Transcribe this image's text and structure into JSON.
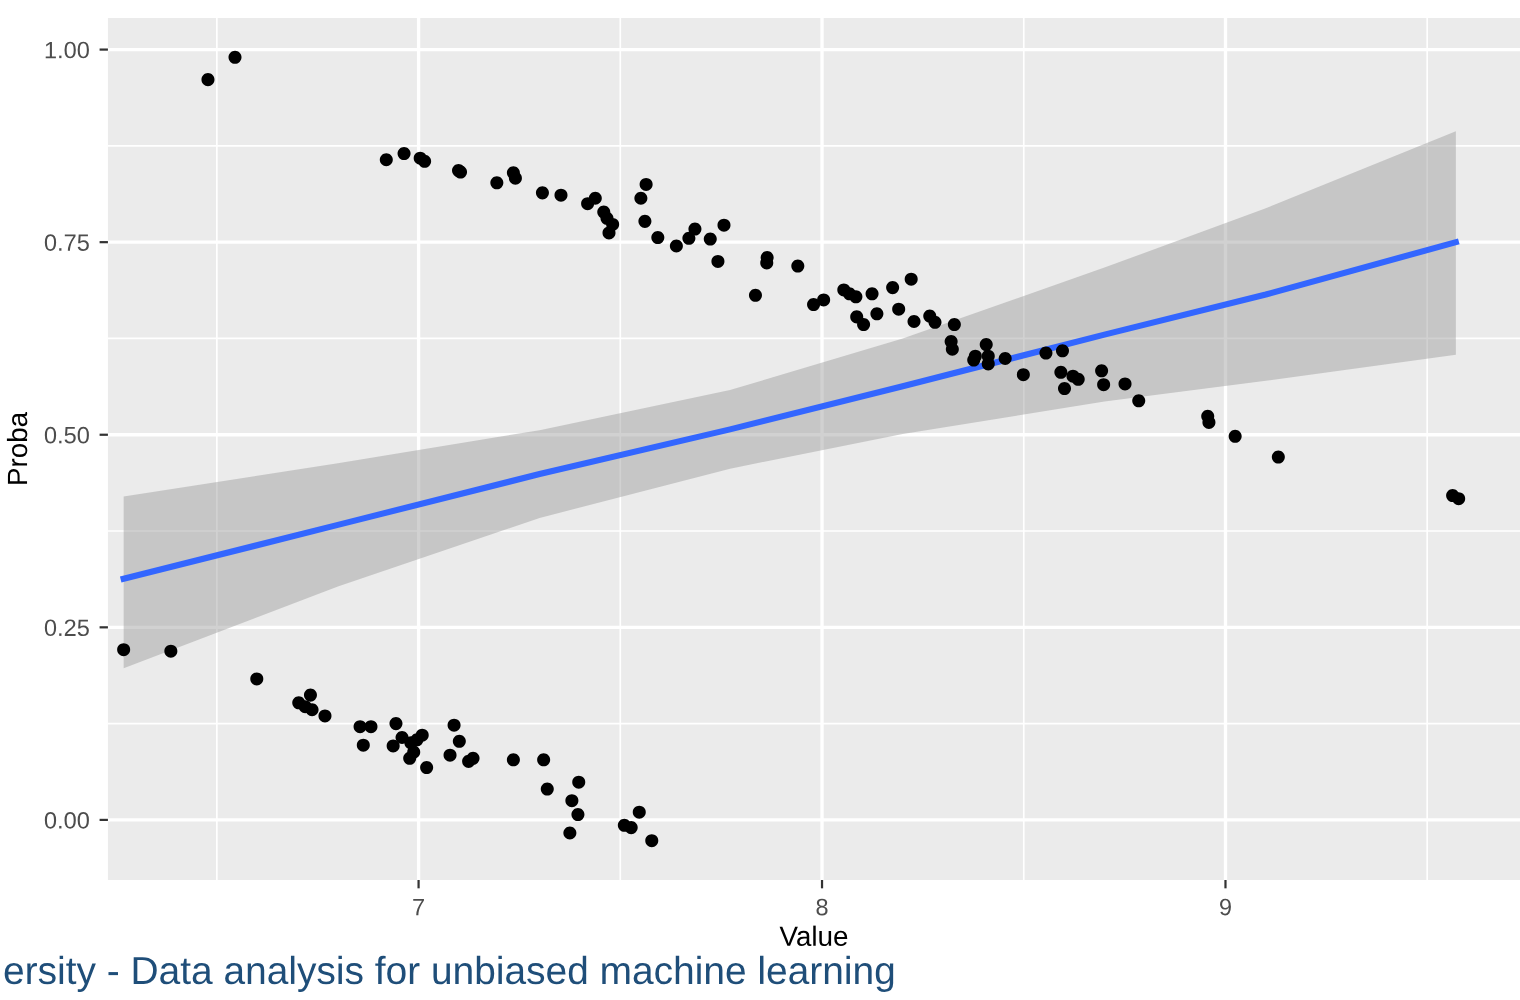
{
  "chart_data": {
    "type": "scatter",
    "xlabel": "Value",
    "ylabel": "Proba",
    "xlim": [
      6.23,
      9.73
    ],
    "ylim": [
      -0.078,
      1.041
    ],
    "xticks": [
      7,
      8,
      9
    ],
    "yticks": [
      {
        "value": 0,
        "label": "0.00"
      },
      {
        "value": 0.25,
        "label": "0.25"
      },
      {
        "value": 0.5,
        "label": "0.50"
      },
      {
        "value": 0.75,
        "label": "0.75"
      },
      {
        "value": 1,
        "label": "1.00"
      }
    ],
    "grid": true,
    "annotations": [
      "ersity - Data analysis for unbiased machine learning"
    ],
    "series": [
      {
        "marker": "circle",
        "color": "#000000",
        "x": [
          6.478,
          6.545,
          6.92,
          6.964,
          7.004,
          7.015,
          7.099,
          7.104,
          7.194,
          7.235,
          7.24,
          7.307,
          7.353,
          7.419,
          7.438,
          7.459,
          7.467,
          7.472,
          7.481,
          7.551,
          7.564,
          7.561,
          7.593,
          7.639,
          7.67,
          7.685,
          7.723,
          7.742,
          7.757,
          7.835,
          7.864,
          7.863,
          7.94,
          7.979,
          8.004,
          8.054,
          8.068,
          8.084,
          8.086,
          8.103,
          8.124,
          8.136,
          8.175,
          8.19,
          8.221,
          8.228,
          8.267,
          8.28,
          8.328,
          8.32,
          8.323,
          8.376,
          8.38,
          8.407,
          8.412,
          8.412,
          8.454,
          8.499,
          8.555,
          8.596,
          8.592,
          8.601,
          8.622,
          8.635,
          8.693,
          8.698,
          8.751,
          8.785,
          8.956,
          8.959,
          9.024,
          9.131,
          9.563,
          9.578,
          6.269,
          6.386,
          6.599,
          6.703,
          6.719,
          6.732,
          6.736,
          6.768,
          6.855,
          6.882,
          6.863,
          6.944,
          6.937,
          6.959,
          6.981,
          6.978,
          6.988,
          6.996,
          7.009,
          7.02,
          7.078,
          7.088,
          7.101,
          7.124,
          7.135,
          7.235,
          7.31,
          7.319,
          7.38,
          7.397,
          7.395,
          7.375,
          7.51,
          7.527,
          7.547,
          7.578
        ],
        "values": [
          0.961,
          0.99,
          0.857,
          0.865,
          0.859,
          0.855,
          0.843,
          0.841,
          0.827,
          0.84,
          0.833,
          0.814,
          0.811,
          0.8,
          0.807,
          0.789,
          0.781,
          0.762,
          0.773,
          0.807,
          0.825,
          0.777,
          0.756,
          0.745,
          0.755,
          0.767,
          0.754,
          0.725,
          0.772,
          0.681,
          0.73,
          0.723,
          0.719,
          0.669,
          0.675,
          0.688,
          0.683,
          0.679,
          0.653,
          0.643,
          0.683,
          0.657,
          0.691,
          0.663,
          0.702,
          0.647,
          0.654,
          0.646,
          0.643,
          0.621,
          0.611,
          0.597,
          0.602,
          0.617,
          0.602,
          0.592,
          0.599,
          0.578,
          0.606,
          0.609,
          0.581,
          0.56,
          0.576,
          0.572,
          0.583,
          0.565,
          0.566,
          0.544,
          0.524,
          0.516,
          0.498,
          0.471,
          0.421,
          0.417,
          0.221,
          0.219,
          0.183,
          0.152,
          0.147,
          0.162,
          0.143,
          0.135,
          0.121,
          0.121,
          0.097,
          0.125,
          0.096,
          0.107,
          0.1,
          0.08,
          0.088,
          0.104,
          0.11,
          0.068,
          0.084,
          0.123,
          0.102,
          0.076,
          0.08,
          0.078,
          0.078,
          0.04,
          0.025,
          0.049,
          0.007,
          -0.017,
          -0.007,
          -0.01,
          0.01,
          -0.027
        ]
      },
      {
        "type": "line",
        "color": "#3366ff",
        "x": [
          6.269,
          6.8,
          7.3,
          7.772,
          8.2,
          8.7,
          9.1,
          9.571
        ],
        "values": [
          0.313,
          0.383,
          0.449,
          0.507,
          0.563,
          0.63,
          0.682,
          0.75
        ],
        "lower": [
          0.197,
          0.303,
          0.392,
          0.456,
          0.501,
          0.543,
          0.57,
          0.604
        ],
        "upper": [
          0.42,
          0.463,
          0.506,
          0.558,
          0.625,
          0.717,
          0.794,
          0.894
        ]
      }
    ]
  }
}
